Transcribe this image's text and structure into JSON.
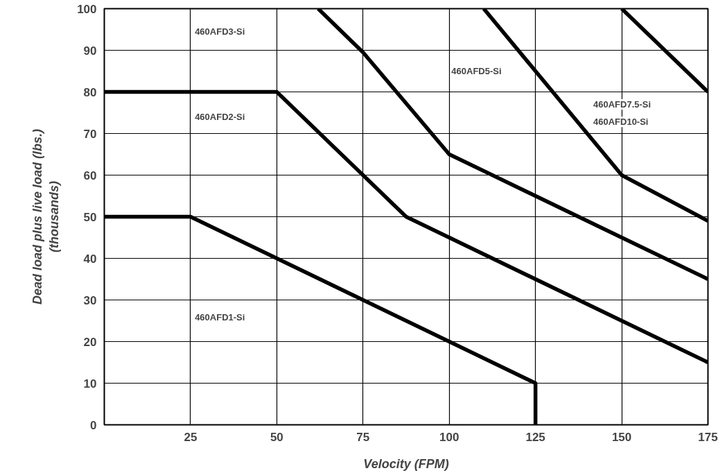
{
  "chart_data": {
    "type": "line",
    "xlabel": "Velocity (FPM)",
    "ylabel": "Dead load plus live load (lbs.)\n(thousands)",
    "xlim": [
      0,
      175
    ],
    "ylim": [
      0,
      100
    ],
    "xticks": [
      25,
      50,
      75,
      100,
      125,
      150,
      175
    ],
    "yticks": [
      0,
      10,
      20,
      30,
      40,
      50,
      60,
      70,
      80,
      90,
      100
    ],
    "grid": true,
    "marker": "none",
    "line_style": "solid",
    "series": [
      {
        "color": "#000000",
        "x": [
          0,
          25,
          50,
          75,
          100,
          125,
          125
        ],
        "values": [
          50,
          50,
          40,
          30,
          20,
          10,
          0
        ]
      },
      {
        "color": "#000000",
        "x": [
          0,
          50,
          75,
          87.5,
          175
        ],
        "values": [
          80,
          80,
          60,
          50,
          15
        ]
      },
      {
        "color": "#000000",
        "x": [
          62,
          75,
          100,
          150,
          175
        ],
        "values": [
          100,
          89.5,
          65,
          45,
          35
        ]
      },
      {
        "color": "#000000",
        "x": [
          110,
          125,
          150,
          175
        ],
        "values": [
          100,
          85,
          60,
          49
        ]
      },
      {
        "color": "#000000",
        "x": [
          150,
          175
        ],
        "values": [
          100,
          80
        ]
      }
    ],
    "annotations": [
      "460AFD3-Si",
      "460AFD2-Si",
      "460AFD1-Si",
      "460AFD5-Si",
      "460AFD7.5-Si",
      "460AFD10-Si"
    ]
  }
}
